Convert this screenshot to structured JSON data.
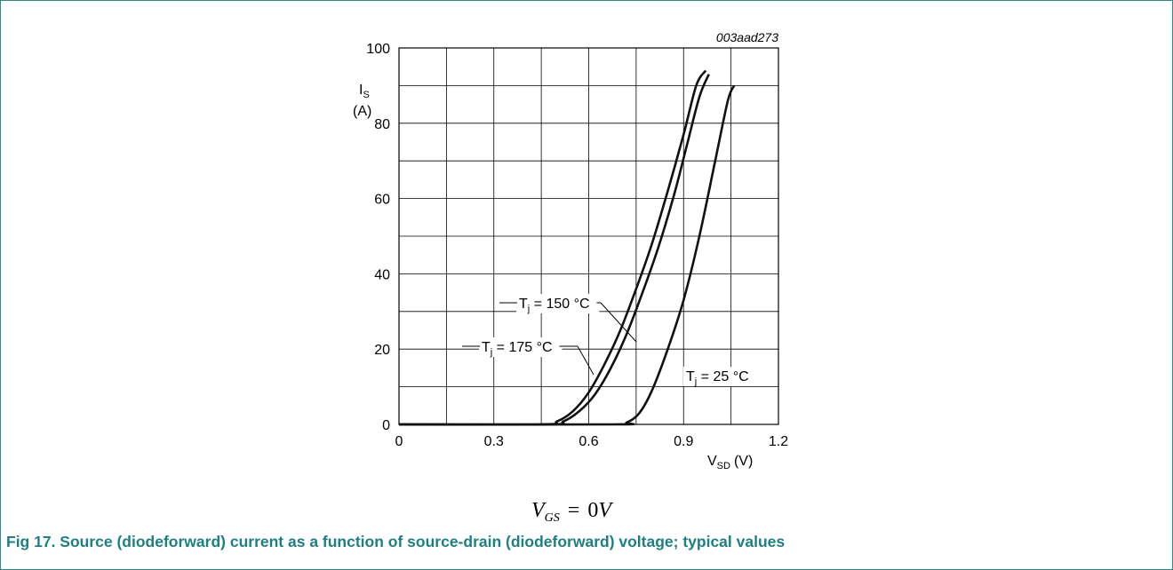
{
  "figure": {
    "caption": "Fig 17.  Source (diodeforward) current as a function of source-drain (diodeforward) voltage; typical values",
    "caption_color": "#1f7f80",
    "frame_color": "#2b8a8a",
    "condition": {
      "symbol": "V",
      "subscript": "GS",
      "equals": "=",
      "value": "0",
      "unit": "V"
    }
  },
  "chart_data": {
    "type": "line",
    "figure_id": "003aad273",
    "ylabel": {
      "symbol": "I",
      "subscript": "S",
      "unit": "(A)"
    },
    "xlabel": {
      "symbol": "V",
      "subscript": "SD",
      "unit": "(V)"
    },
    "xlim": [
      0,
      1.2
    ],
    "ylim": [
      0,
      100
    ],
    "x_ticks": [
      "0",
      "0.3",
      "0.6",
      "0.9",
      "1.2"
    ],
    "y_ticks": [
      "0",
      "20",
      "40",
      "60",
      "80",
      "100"
    ],
    "x_tick_values": [
      0,
      0.3,
      0.6,
      0.9,
      1.2
    ],
    "y_tick_values": [
      0,
      20,
      40,
      60,
      80,
      100
    ],
    "grid": {
      "x_step": 0.15,
      "y_step": 10,
      "shown": true
    },
    "line_color": "#111111",
    "series": [
      {
        "name": "Tj = 175 °C",
        "label": {
          "main": "T",
          "sub": "j",
          "rest": " = 175 °C"
        },
        "points": [
          [
            0,
            0
          ],
          [
            0.45,
            0
          ],
          [
            0.5,
            0.8
          ],
          [
            0.55,
            3.5
          ],
          [
            0.6,
            8.5
          ],
          [
            0.65,
            16
          ],
          [
            0.7,
            25
          ],
          [
            0.75,
            36
          ],
          [
            0.8,
            48
          ],
          [
            0.85,
            62
          ],
          [
            0.9,
            77
          ],
          [
            0.94,
            90
          ],
          [
            0.97,
            94
          ]
        ]
      },
      {
        "name": "Tj = 150 °C",
        "label": {
          "main": "T",
          "sub": "j",
          "rest": " = 150 °C"
        },
        "points": [
          [
            0,
            0
          ],
          [
            0.47,
            0
          ],
          [
            0.52,
            0.8
          ],
          [
            0.57,
            3.5
          ],
          [
            0.62,
            8
          ],
          [
            0.67,
            15
          ],
          [
            0.72,
            24
          ],
          [
            0.77,
            35
          ],
          [
            0.82,
            47
          ],
          [
            0.87,
            61
          ],
          [
            0.91,
            74
          ],
          [
            0.95,
            87
          ],
          [
            0.98,
            93
          ]
        ]
      },
      {
        "name": "Tj = 25 °C",
        "label": {
          "main": "T",
          "sub": "j",
          "rest": " = 25 °C"
        },
        "points": [
          [
            0,
            0
          ],
          [
            0.68,
            0
          ],
          [
            0.72,
            0.5
          ],
          [
            0.76,
            3
          ],
          [
            0.8,
            9
          ],
          [
            0.85,
            20
          ],
          [
            0.9,
            33
          ],
          [
            0.95,
            50
          ],
          [
            1.0,
            70
          ],
          [
            1.04,
            86
          ],
          [
            1.06,
            90
          ]
        ]
      }
    ]
  }
}
